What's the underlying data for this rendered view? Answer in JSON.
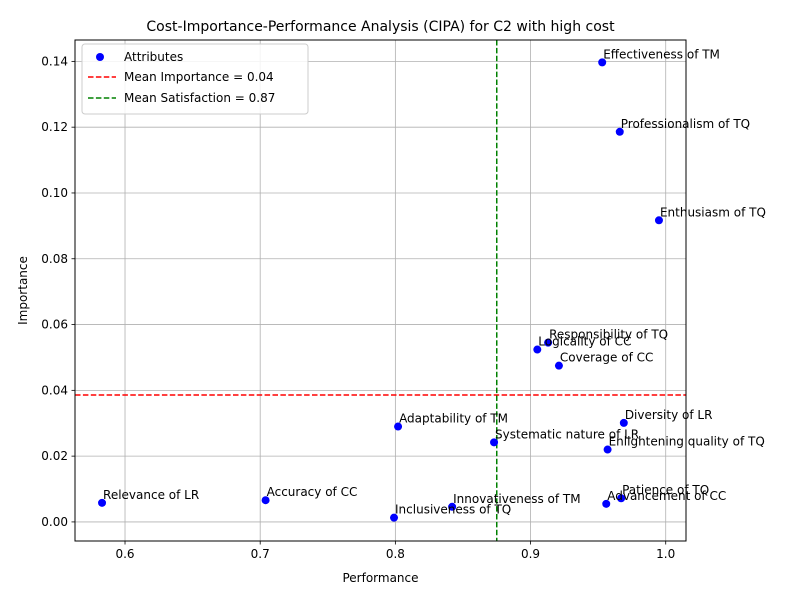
{
  "chart_data": {
    "type": "scatter",
    "title": "Cost-Importance-Performance Analysis (CIPA) for C2 with high cost",
    "xlabel": "Performance",
    "ylabel": "Importance",
    "xlim": [
      0.563,
      1.015
    ],
    "ylim": [
      -0.0058,
      0.1465
    ],
    "x_ticks": [
      0.6,
      0.7,
      0.8,
      0.9,
      1.0
    ],
    "x_tick_labels": [
      "0.6",
      "0.7",
      "0.8",
      "0.9",
      "1.0"
    ],
    "y_ticks": [
      0.0,
      0.02,
      0.04,
      0.06,
      0.08,
      0.1,
      0.12,
      0.14
    ],
    "y_tick_labels": [
      "0.00",
      "0.02",
      "0.04",
      "0.06",
      "0.08",
      "0.10",
      "0.12",
      "0.14"
    ],
    "grid": true,
    "legend_position": "top-left",
    "colors": {
      "points": "#0000ff",
      "mean_importance": "#ff0000",
      "mean_satisfaction": "#008000"
    },
    "series": [
      {
        "name": "Attributes",
        "points": [
          {
            "label": "Effectiveness of TM",
            "x": 0.953,
            "y": 0.1397
          },
          {
            "label": "Professionalism of TQ",
            "x": 0.966,
            "y": 0.1186
          },
          {
            "label": "Enthusiasm of TQ",
            "x": 0.995,
            "y": 0.0917
          },
          {
            "label": "Responsibility of TQ",
            "x": 0.913,
            "y": 0.0545
          },
          {
            "label": "Logicality of CC",
            "x": 0.905,
            "y": 0.0524
          },
          {
            "label": "Coverage of CC",
            "x": 0.921,
            "y": 0.0475
          },
          {
            "label": "Adaptability of TM",
            "x": 0.802,
            "y": 0.029
          },
          {
            "label": "Diversity of LR",
            "x": 0.969,
            "y": 0.0301
          },
          {
            "label": "Systematic nature of LR",
            "x": 0.873,
            "y": 0.0242
          },
          {
            "label": "Enlightening quality of TQ",
            "x": 0.957,
            "y": 0.022
          },
          {
            "label": "Relevance of LR",
            "x": 0.583,
            "y": 0.0058
          },
          {
            "label": "Accuracy of CC",
            "x": 0.704,
            "y": 0.0066
          },
          {
            "label": "Innovativeness of TM",
            "x": 0.842,
            "y": 0.0046
          },
          {
            "label": "Inclusiveness of TQ",
            "x": 0.799,
            "y": 0.0013
          },
          {
            "label": "Patience of TQ",
            "x": 0.967,
            "y": 0.0072
          },
          {
            "label": "Advancement of CC",
            "x": 0.956,
            "y": 0.0055
          }
        ]
      }
    ],
    "reference_lines": [
      {
        "name": "Mean Importance = 0.04",
        "orientation": "horizontal",
        "value": 0.0386
      },
      {
        "name": "Mean Satisfaction = 0.87",
        "orientation": "vertical",
        "value": 0.875
      }
    ]
  }
}
